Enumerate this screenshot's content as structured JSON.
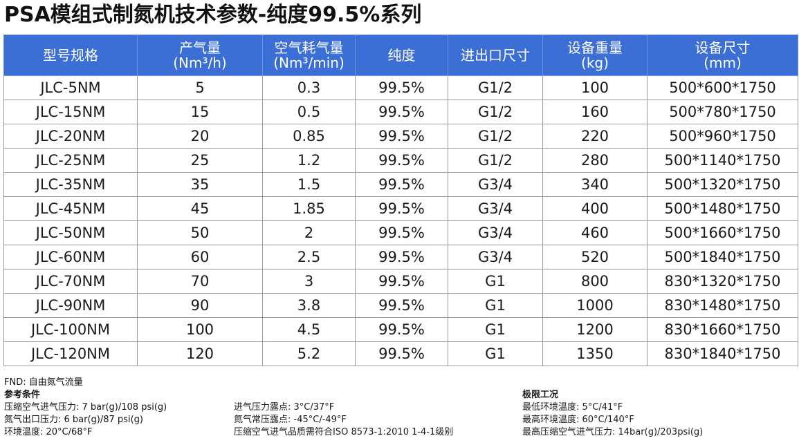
{
  "title": "PSA模组式制氮机技术参数-纯度99.5%系列",
  "table": {
    "headers": [
      {
        "line1": "型号规格",
        "line2": ""
      },
      {
        "line1": "产气量",
        "line2": "(Nm³/h)"
      },
      {
        "line1": "空气耗气量",
        "line2": "(Nm³/min)"
      },
      {
        "line1": "纯度",
        "line2": ""
      },
      {
        "line1": "进出口尺寸",
        "line2": ""
      },
      {
        "line1": "设备重量",
        "line2": "(kg)"
      },
      {
        "line1": "设备尺寸",
        "line2": "(mm)"
      }
    ],
    "rows": [
      [
        "JLC-5NM",
        "5",
        "0.3",
        "99.5%",
        "G1/2",
        "100",
        "500*600*1750"
      ],
      [
        "JLC-15NM",
        "15",
        "0.5",
        "99.5%",
        "G1/2",
        "160",
        "500*780*1750"
      ],
      [
        "JLC-20NM",
        "20",
        "0.85",
        "99.5%",
        "G1/2",
        "220",
        "500*960*1750"
      ],
      [
        "JLC-25NM",
        "25",
        "1.2",
        "99.5%",
        "G1/2",
        "280",
        "500*1140*1750"
      ],
      [
        "JLC-35NM",
        "35",
        "1.5",
        "99.5%",
        "G3/4",
        "340",
        "500*1320*1750"
      ],
      [
        "JLC-45NM",
        "45",
        "1.85",
        "99.5%",
        "G3/4",
        "400",
        "500*1480*1750"
      ],
      [
        "JLC-50NM",
        "50",
        "2",
        "99.5%",
        "G3/4",
        "460",
        "500*1660*1750"
      ],
      [
        "JLC-60NM",
        "60",
        "2.5",
        "99.5%",
        "G3/4",
        "520",
        "500*1840*1750"
      ],
      [
        "JLC-70NM",
        "70",
        "3",
        "99.5%",
        "G1",
        "800",
        "830*1320*1750"
      ],
      [
        "JLC-90NM",
        "90",
        "3.8",
        "99.5%",
        "G1",
        "1000",
        "830*1480*1750"
      ],
      [
        "JLC-100NM",
        "100",
        "4.5",
        "99.5%",
        "G1",
        "1200",
        "830*1660*1750"
      ],
      [
        "JLC-120NM",
        "120",
        "5.2",
        "99.5%",
        "G1",
        "1350",
        "830*1840*1750"
      ]
    ]
  },
  "notes": {
    "fnd": "FND: 自由氮气流量",
    "reference_title": "参考条件",
    "ref_col1": [
      "压缩空气进气压力: 7 bar(g)/108 psi(g)",
      "氮气出口压力: 6 bar(g)/87 psi(g)",
      "环境温度: 20°C/68°F"
    ],
    "ref_col2": [
      "进气压力露点: 3°C/37°F",
      "氮气常压露点: -45°C/-49°F",
      "压缩空气进气品质需符合ISO 8573-1:2010 1-4-1级别"
    ],
    "limit_title": "极限工况",
    "limit_items": [
      "最低环境温度: 5°C/41°F",
      "最高环境温度: 60°C/140°F",
      "最高压缩空气进气压力: 14bar(g)/203psi(g)"
    ]
  },
  "colors": {
    "header_bg": "#3b6fd6",
    "header_text": "#ffffff"
  }
}
